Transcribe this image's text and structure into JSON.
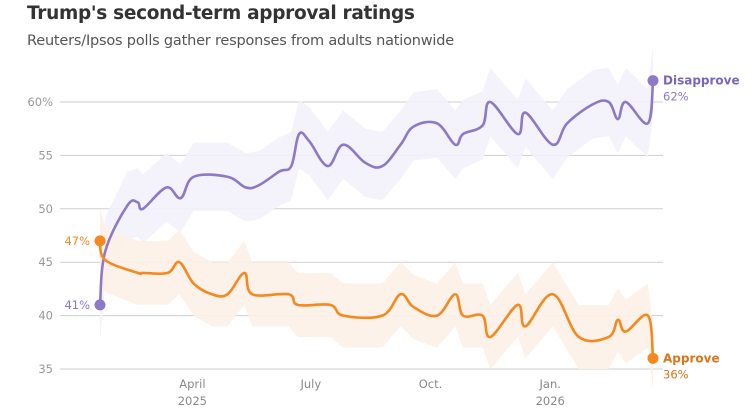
{
  "title": "Trump's second-term approval ratings",
  "subtitle": "Reuters/Ipsos polls gather responses from adults nationwide",
  "chart_data": {
    "type": "line",
    "title": "Trump's second-term approval ratings",
    "subtitle": "Reuters/Ipsos polls gather responses from adults nationwide",
    "ylim": [
      35,
      62
    ],
    "yticks": [
      35,
      40,
      45,
      50,
      55,
      60
    ],
    "ytick_labels": [
      "35",
      "40",
      "45",
      "50",
      "55",
      "60%"
    ],
    "xlim": [
      "2025-01-20",
      "2026-03-21"
    ],
    "xticks": [
      {
        "date": "2025-04-01",
        "label": "April",
        "sublabel": "2025"
      },
      {
        "date": "2025-07-01",
        "label": "July",
        "sublabel": ""
      },
      {
        "date": "2025-10-01",
        "label": "Oct.",
        "sublabel": ""
      },
      {
        "date": "2026-01-01",
        "label": "Jan.",
        "sublabel": "2026"
      }
    ],
    "grid": true,
    "series": [
      {
        "name": "Disapprove",
        "color": "#8e79c6",
        "band_color": "#f3f1f9",
        "band_halfwidth": 3.2,
        "start_label": "41%",
        "end_label": "62%",
        "points": [
          [
            "2025-01-20",
            41
          ],
          [
            "2025-01-24",
            46
          ],
          [
            "2025-02-10",
            50.3
          ],
          [
            "2025-02-18",
            50.6
          ],
          [
            "2025-02-22",
            50
          ],
          [
            "2025-03-12",
            52
          ],
          [
            "2025-03-23",
            51
          ],
          [
            "2025-04-02",
            53
          ],
          [
            "2025-04-28",
            53
          ],
          [
            "2025-05-12",
            52
          ],
          [
            "2025-05-22",
            52.2
          ],
          [
            "2025-06-07",
            53.5
          ],
          [
            "2025-06-16",
            54
          ],
          [
            "2025-06-22",
            57
          ],
          [
            "2025-06-30",
            56.3
          ],
          [
            "2025-07-14",
            54
          ],
          [
            "2025-07-26",
            56
          ],
          [
            "2025-08-12",
            54.3
          ],
          [
            "2025-08-25",
            54
          ],
          [
            "2025-09-08",
            56
          ],
          [
            "2025-09-18",
            57.7
          ],
          [
            "2025-10-06",
            58
          ],
          [
            "2025-10-20",
            56
          ],
          [
            "2025-10-26",
            57
          ],
          [
            "2025-11-10",
            57.8
          ],
          [
            "2025-11-16",
            60
          ],
          [
            "2025-12-07",
            57
          ],
          [
            "2025-12-13",
            59
          ],
          [
            "2026-01-03",
            56
          ],
          [
            "2026-01-14",
            58
          ],
          [
            "2026-02-03",
            59.8
          ],
          [
            "2026-02-15",
            60
          ],
          [
            "2026-02-22",
            58.4
          ],
          [
            "2026-02-28",
            60
          ],
          [
            "2026-03-17",
            58
          ],
          [
            "2026-03-21",
            62
          ]
        ]
      },
      {
        "name": "Approve",
        "color": "#f5891f",
        "band_color": "#fdf1e7",
        "band_halfwidth": 3,
        "start_label": "47%",
        "end_label": "36%",
        "points": [
          [
            "2025-01-20",
            47
          ],
          [
            "2025-01-24",
            45.2
          ],
          [
            "2025-02-18",
            44
          ],
          [
            "2025-02-22",
            44
          ],
          [
            "2025-03-13",
            44
          ],
          [
            "2025-03-22",
            45
          ],
          [
            "2025-04-02",
            43
          ],
          [
            "2025-04-16",
            42
          ],
          [
            "2025-04-28",
            42
          ],
          [
            "2025-05-11",
            44
          ],
          [
            "2025-05-17",
            42
          ],
          [
            "2025-06-14",
            42
          ],
          [
            "2025-06-21",
            41
          ],
          [
            "2025-07-16",
            41
          ],
          [
            "2025-07-26",
            40
          ],
          [
            "2025-08-25",
            40
          ],
          [
            "2025-09-08",
            42
          ],
          [
            "2025-09-18",
            40.8
          ],
          [
            "2025-10-06",
            40
          ],
          [
            "2025-10-20",
            42
          ],
          [
            "2025-10-26",
            40
          ],
          [
            "2025-11-10",
            40
          ],
          [
            "2025-11-16",
            38
          ],
          [
            "2025-12-07",
            41
          ],
          [
            "2025-12-13",
            39
          ],
          [
            "2026-01-03",
            42
          ],
          [
            "2026-01-23",
            38
          ],
          [
            "2026-02-15",
            38
          ],
          [
            "2026-02-22",
            39.6
          ],
          [
            "2026-02-28",
            38.5
          ],
          [
            "2026-03-17",
            40
          ],
          [
            "2026-03-21",
            36
          ]
        ]
      }
    ]
  }
}
